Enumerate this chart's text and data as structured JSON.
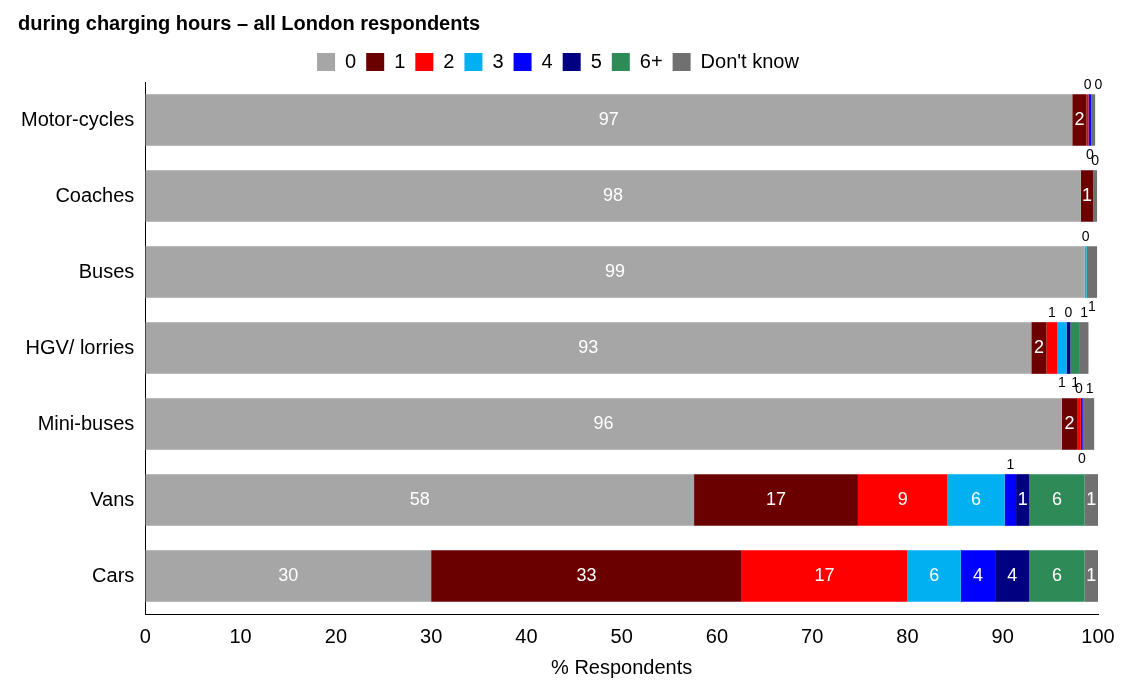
{
  "chart_data": {
    "type": "bar",
    "orientation": "horizontal",
    "stacked": true,
    "title": "during charging hours – all London respondents",
    "xlabel": "% Respondents",
    "categories": [
      "Motor-cycles",
      "Coaches",
      "Buses",
      "HGV/ lorries",
      "Mini-buses",
      "Vans",
      "Cars"
    ],
    "xlim": [
      0,
      100
    ],
    "xticks": [
      0,
      10,
      20,
      30,
      40,
      50,
      60,
      70,
      80,
      90,
      100
    ],
    "grid": false,
    "legend": "top",
    "series": [
      {
        "name": "0",
        "color": "#a6a6a6",
        "values": [
          97.3,
          98.2,
          98.6,
          93,
          96.2,
          57.6,
          30
        ],
        "value_labels": [
          "97",
          "98",
          "99",
          "93",
          "96",
          "58",
          "30"
        ]
      },
      {
        "name": "1",
        "color": "#6b0000",
        "values": [
          1.5,
          1.3,
          null,
          1.6,
          1.6,
          17.2,
          32.6
        ],
        "value_labels": [
          "2",
          "1",
          null,
          "2",
          "2",
          "17",
          "33"
        ]
      },
      {
        "name": "2",
        "color": "#ff0000",
        "values": [
          0.2,
          null,
          null,
          1.1,
          0.4,
          9.4,
          17.4
        ],
        "value_labels": [
          "0",
          null,
          null,
          "1",
          "0",
          "9",
          "17"
        ]
      },
      {
        "name": "3",
        "color": "#00b0f0",
        "values": [
          null,
          null,
          0.2,
          1.0,
          null,
          6.0,
          5.6
        ],
        "value_labels": [
          null,
          null,
          "0",
          "1",
          null,
          "6",
          "6"
        ]
      },
      {
        "name": "4",
        "color": "#0000ff",
        "values": [
          0.3,
          null,
          null,
          null,
          0.2,
          1.2,
          3.6
        ],
        "value_labels": [
          "0",
          null,
          null,
          null,
          "0",
          "1",
          "4"
        ]
      },
      {
        "name": "5",
        "color": "#000080",
        "values": [
          null,
          null,
          null,
          0.4,
          null,
          1.4,
          3.6
        ],
        "value_labels": [
          null,
          null,
          null,
          "0",
          null,
          "1",
          "4"
        ]
      },
      {
        "name": "6+",
        "color": "#2e8b57",
        "values": [
          null,
          null,
          null,
          1.0,
          null,
          5.8,
          5.8
        ],
        "value_labels": [
          null,
          null,
          null,
          "1",
          null,
          "6",
          "6"
        ]
      },
      {
        "name": "Don't know",
        "color": "#707070",
        "values": [
          0.4,
          0.4,
          1.1,
          0.9,
          1.2,
          1.4,
          1.4
        ],
        "value_labels": [
          "0",
          "0",
          "1",
          "1",
          "1",
          "1",
          "1"
        ]
      }
    ]
  }
}
